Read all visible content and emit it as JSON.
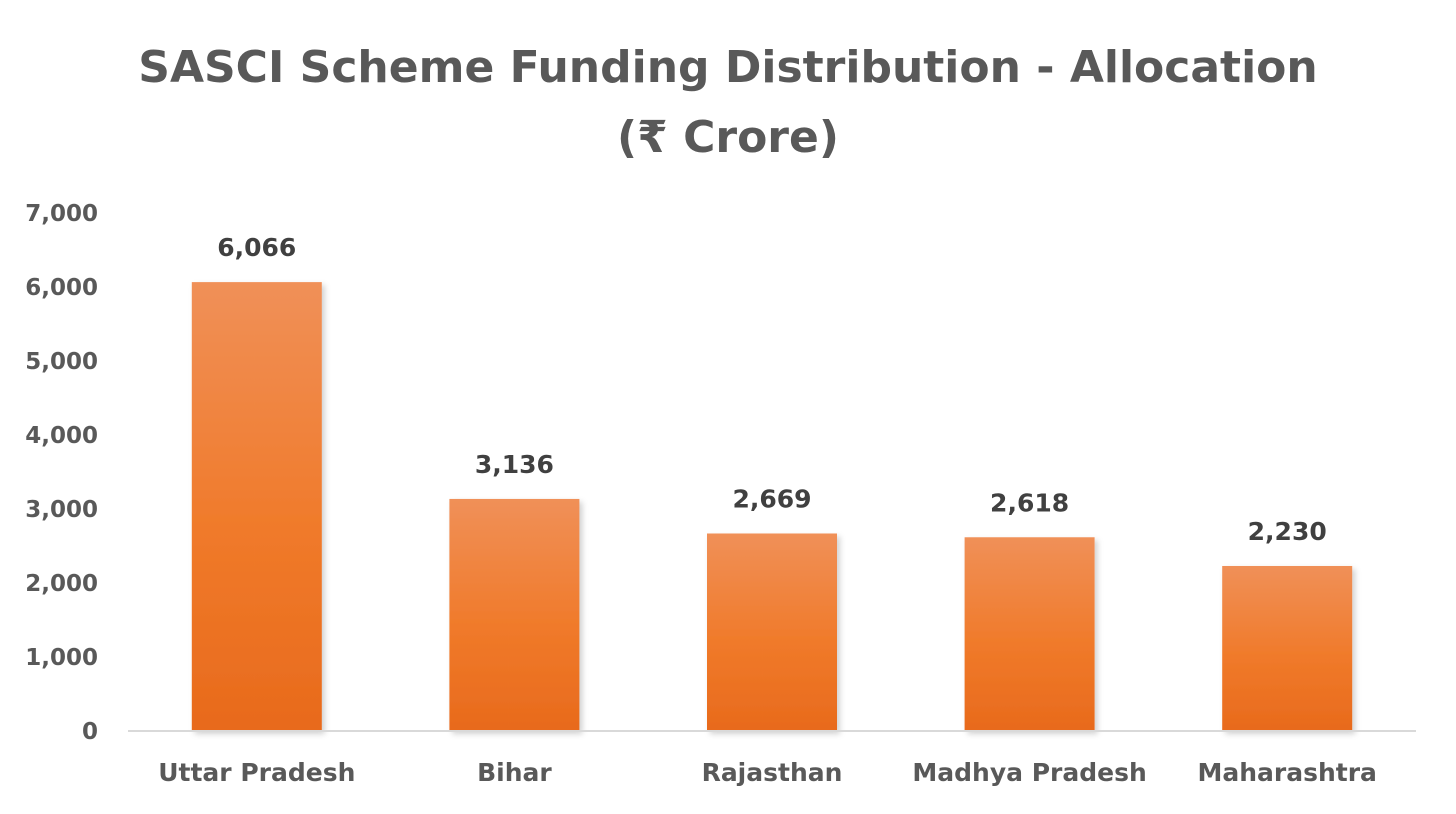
{
  "chart_data": {
    "type": "bar",
    "title_lines": [
      "SASCI Scheme Funding Distribution - Allocation",
      "(₹ Crore)"
    ],
    "categories": [
      "Uttar Pradesh",
      "Bihar",
      "Rajasthan",
      "Madhya Pradesh",
      "Maharashtra"
    ],
    "values": [
      6066,
      3136,
      2669,
      2618,
      2230
    ],
    "value_labels": [
      "6,066",
      "3,136",
      "2,669",
      "2,618",
      "2,230"
    ],
    "y_ticks": [
      0,
      1000,
      2000,
      3000,
      4000,
      5000,
      6000,
      7000
    ],
    "y_tick_labels": [
      "0",
      "1,000",
      "2,000",
      "3,000",
      "4,000",
      "5,000",
      "6,000",
      "7,000"
    ],
    "ylim": [
      0,
      7000
    ],
    "grid": false,
    "legend": "none",
    "colors": {
      "bar_top": "#f09058",
      "bar_bottom": "#e86a1c",
      "axis": "#d9d9d9"
    }
  }
}
